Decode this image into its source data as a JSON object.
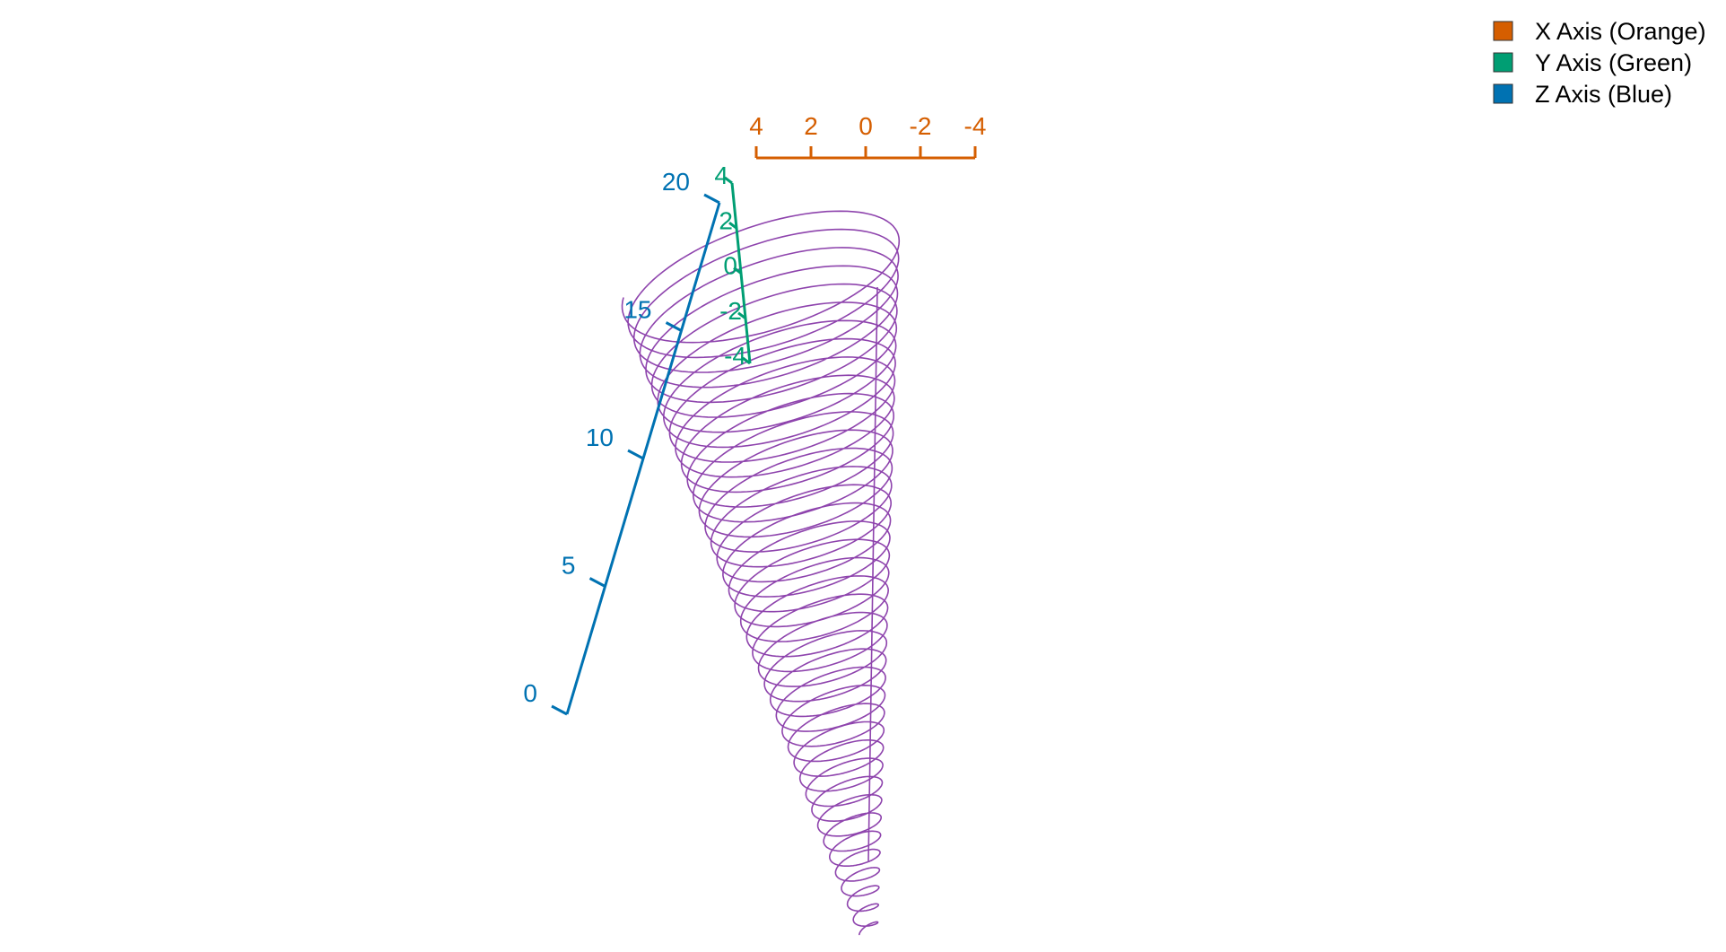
{
  "chart_data": {
    "type": "line",
    "projection": "3d",
    "title": "",
    "legend": {
      "placement": "top-right",
      "entries": [
        {
          "label": "X Axis (Orange)",
          "color": "#d55e00"
        },
        {
          "label": "Y Axis (Green)",
          "color": "#009e73"
        },
        {
          "label": "Z Axis (Blue)",
          "color": "#0072b2"
        }
      ]
    },
    "axes": {
      "x": {
        "color": "#d55e00",
        "range": [
          4,
          -4
        ],
        "ticks": [
          4,
          2,
          0,
          -2,
          -4
        ],
        "tick_labels": [
          "4",
          "2",
          "0",
          "-2",
          "-4"
        ]
      },
      "y": {
        "color": "#009e73",
        "range": [
          4,
          -4
        ],
        "ticks": [
          4,
          2,
          0,
          -2,
          -4
        ],
        "tick_labels": [
          "4",
          "2",
          "0",
          "-2",
          "-4"
        ]
      },
      "z": {
        "color": "#0072b2",
        "range": [
          0,
          20
        ],
        "ticks": [
          0,
          5,
          10,
          15,
          20
        ],
        "tick_labels": [
          "0",
          "5",
          "10",
          "15",
          "20"
        ]
      }
    },
    "series": [
      {
        "color": "#8e44ad",
        "z_range": [
          0,
          20
        ],
        "turns": 40,
        "radius_range": [
          0.3,
          4.5
        ]
      }
    ]
  }
}
